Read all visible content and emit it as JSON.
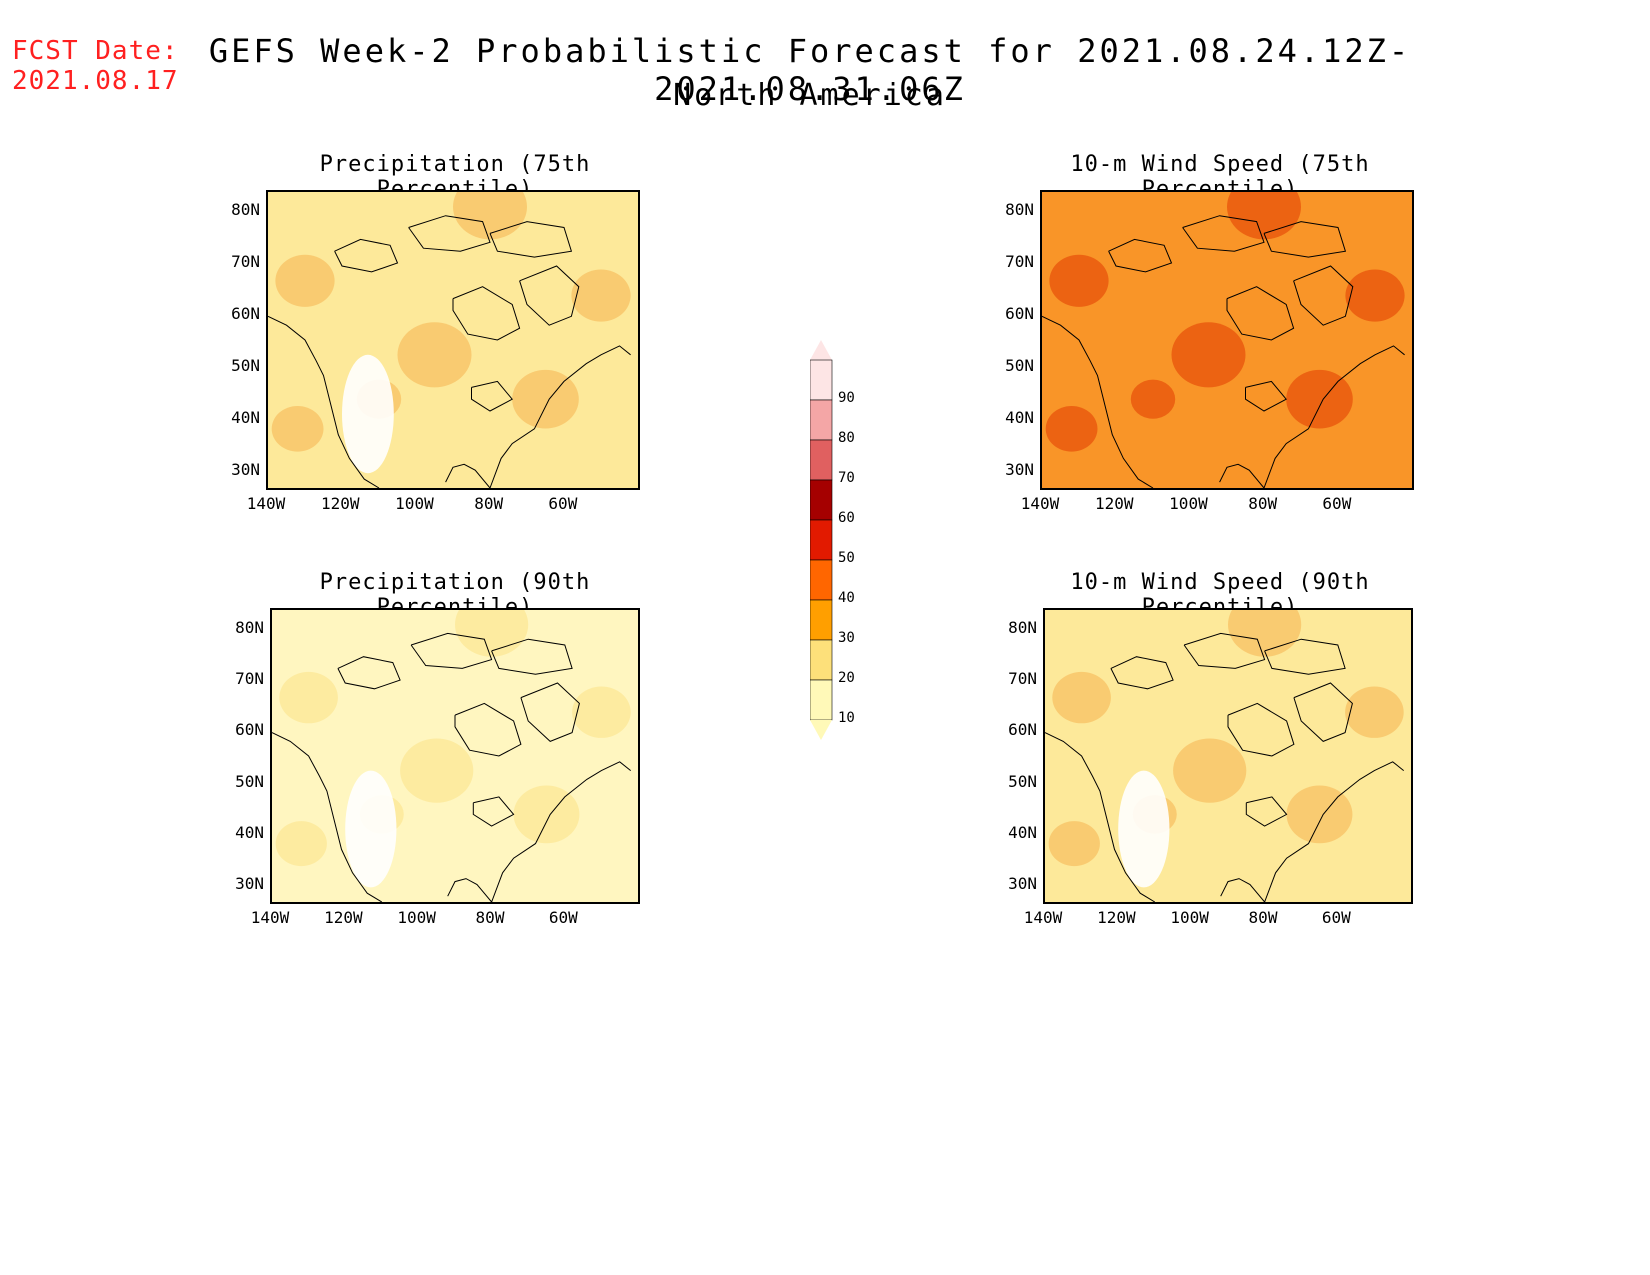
{
  "fcst": {
    "label": "FCST Date:",
    "date": "2021.08.17"
  },
  "title": {
    "main": "GEFS Week-2 Probabilistic Forecast for 2021.08.24.12Z-2021.08.31.06Z",
    "region": "North America"
  },
  "panels": [
    {
      "title": "Precipitation (75th Percentile)",
      "fill": "#fde99a",
      "accent": "#f8c56a"
    },
    {
      "title": "10-m Wind Speed (75th Percentile)",
      "fill": "#f99528",
      "accent": "#ea5a0e"
    },
    {
      "title": "Precipitation (90th Percentile)",
      "fill": "#fff6c0",
      "accent": "#fde99a"
    },
    {
      "title": "10-m Wind Speed (90th Percentile)",
      "fill": "#fde99a",
      "accent": "#f8c56a"
    }
  ],
  "axes": {
    "lat_labels": [
      "80N",
      "70N",
      "60N",
      "50N",
      "40N",
      "30N"
    ],
    "lon_labels": [
      "140W",
      "120W",
      "100W",
      "80W",
      "60W"
    ]
  },
  "colorbar": {
    "levels": [
      "90",
      "80",
      "70",
      "60",
      "50",
      "40",
      "30",
      "20",
      "10"
    ],
    "colors": [
      "#fde5e5",
      "#f4a6a6",
      "#e06060",
      "#a50000",
      "#e21a00",
      "#ff6600",
      "#ff9f00",
      "#fde07a",
      "#fff9b8"
    ]
  }
}
